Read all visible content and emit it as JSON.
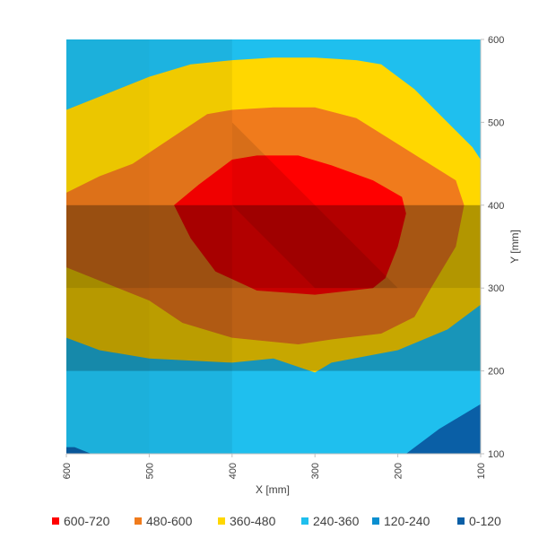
{
  "chart_data": {
    "type": "heatmap",
    "subtype": "contour-surface-top-view",
    "title": "",
    "xlabel": "X [mm]",
    "ylabel": "Y [mm]",
    "x_ticks": [
      600,
      500,
      400,
      300,
      200,
      100
    ],
    "y_ticks": [
      600,
      500,
      400,
      300,
      200,
      100
    ],
    "xlim": [
      600,
      100
    ],
    "ylim": [
      100,
      600
    ],
    "x_axis_reversed": true,
    "y_axis_side": "right",
    "legend_position": "bottom",
    "bands": [
      {
        "label": "600-720",
        "min": 600,
        "max": 720,
        "color": "#ff0000"
      },
      {
        "label": "480-600",
        "min": 480,
        "max": 600,
        "color": "#f07b1c"
      },
      {
        "label": "360-480",
        "min": 360,
        "max": 480,
        "color": "#ffd700"
      },
      {
        "label": "240-360",
        "min": 240,
        "max": 360,
        "color": "#1fbfee"
      },
      {
        "label": "120-240",
        "min": 120,
        "max": 240,
        "color": "#0a8fd0"
      },
      {
        "label": "0-120",
        "min": 0,
        "max": 120,
        "color": "#0a5fa6"
      }
    ],
    "regions": [
      {
        "band": "240-360",
        "polygon": [
          [
            600,
            600
          ],
          [
            100,
            600
          ],
          [
            100,
            100
          ],
          [
            600,
            100
          ]
        ]
      },
      {
        "band": "360-480",
        "polygon": [
          [
            600,
            515
          ],
          [
            550,
            535
          ],
          [
            500,
            555
          ],
          [
            450,
            570
          ],
          [
            400,
            575
          ],
          [
            350,
            578
          ],
          [
            300,
            578
          ],
          [
            250,
            575
          ],
          [
            220,
            570
          ],
          [
            180,
            540
          ],
          [
            140,
            500
          ],
          [
            110,
            470
          ],
          [
            100,
            455
          ],
          [
            100,
            280
          ],
          [
            140,
            250
          ],
          [
            200,
            225
          ],
          [
            280,
            210
          ],
          [
            300,
            198
          ],
          [
            350,
            215
          ],
          [
            400,
            210
          ],
          [
            500,
            215
          ],
          [
            560,
            225
          ],
          [
            600,
            240
          ]
        ]
      },
      {
        "band": "480-600",
        "polygon": [
          [
            600,
            415
          ],
          [
            560,
            435
          ],
          [
            520,
            450
          ],
          [
            490,
            470
          ],
          [
            460,
            490
          ],
          [
            430,
            510
          ],
          [
            400,
            515
          ],
          [
            350,
            518
          ],
          [
            300,
            518
          ],
          [
            250,
            505
          ],
          [
            210,
            480
          ],
          [
            170,
            455
          ],
          [
            130,
            430
          ],
          [
            120,
            400
          ],
          [
            130,
            350
          ],
          [
            160,
            300
          ],
          [
            180,
            265
          ],
          [
            220,
            245
          ],
          [
            280,
            238
          ],
          [
            320,
            232
          ],
          [
            400,
            240
          ],
          [
            460,
            258
          ],
          [
            500,
            285
          ],
          [
            550,
            305
          ],
          [
            600,
            325
          ]
        ]
      },
      {
        "band": "600-720",
        "polygon": [
          [
            470,
            400
          ],
          [
            440,
            425
          ],
          [
            400,
            455
          ],
          [
            370,
            460
          ],
          [
            320,
            460
          ],
          [
            280,
            448
          ],
          [
            230,
            430
          ],
          [
            195,
            410
          ],
          [
            190,
            390
          ],
          [
            200,
            350
          ],
          [
            215,
            312
          ],
          [
            230,
            300
          ],
          [
            300,
            292
          ],
          [
            370,
            297
          ],
          [
            420,
            320
          ],
          [
            450,
            360
          ]
        ]
      },
      {
        "band": "0-120",
        "polygon": [
          [
            100,
            160
          ],
          [
            150,
            130
          ],
          [
            190,
            100
          ],
          [
            100,
            100
          ]
        ]
      },
      {
        "band": "0-120",
        "polygon": [
          [
            600,
            108
          ],
          [
            590,
            108
          ],
          [
            570,
            100
          ],
          [
            600,
            100
          ]
        ]
      }
    ]
  },
  "legend": {
    "items": [
      {
        "label": "600-720",
        "color": "#ff0000"
      },
      {
        "label": "480-600",
        "color": "#f07b1c"
      },
      {
        "label": "360-480",
        "color": "#ffd700"
      },
      {
        "label": "240-360",
        "color": "#1fbfee"
      },
      {
        "label": "120-240",
        "color": "#0a8fd0"
      },
      {
        "label": "0-120",
        "color": "#0a5fa6"
      }
    ]
  }
}
